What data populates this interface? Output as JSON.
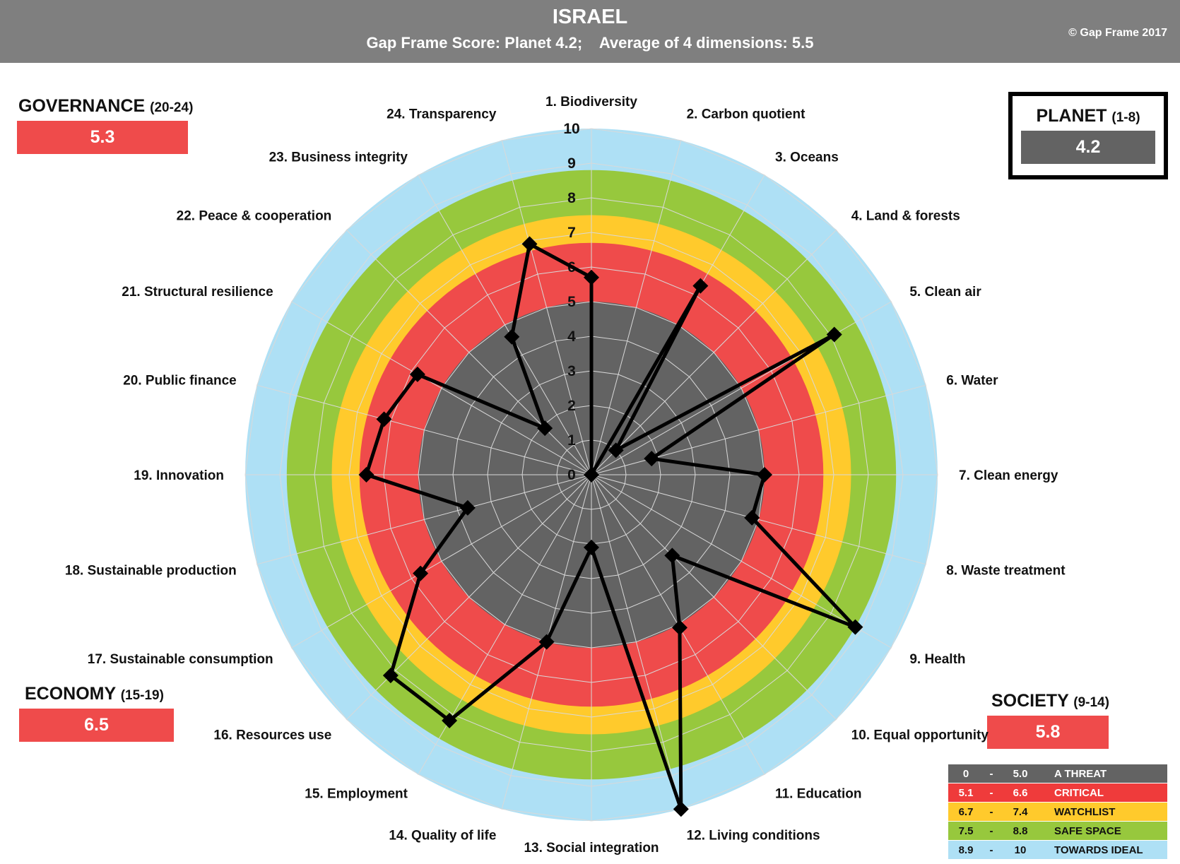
{
  "header": {
    "country": "ISRAEL",
    "score_line": "Gap Frame Score: Planet 4.2;    Average of 4 dimensions: 5.5",
    "copyright": "© Gap Frame 2017"
  },
  "dimensions": {
    "governance": {
      "name": "GOVERNANCE",
      "range": "(20-24)",
      "score": "5.3",
      "color": "#ef4b4b"
    },
    "planet": {
      "name": "PLANET",
      "range": "(1-8)",
      "score": "4.2",
      "color": "#636363"
    },
    "economy": {
      "name": "ECONOMY",
      "range": "(15-19)",
      "score": "6.5",
      "color": "#ef4b4b"
    },
    "society": {
      "name": "SOCIETY",
      "range": "(9-14)",
      "score": "5.8",
      "color": "#ef4b4b"
    }
  },
  "legend": [
    {
      "from": "0",
      "dash": "-",
      "to": "5.0",
      "label": "A THREAT",
      "color": "#636363",
      "text_color": "#ffffff"
    },
    {
      "from": "5.1",
      "dash": "-",
      "to": "6.6",
      "label": "CRITICAL",
      "color": "#ef3b3b",
      "text_color": "#ffffff"
    },
    {
      "from": "6.7",
      "dash": "-",
      "to": "7.4",
      "label": "WATCHLIST",
      "color": "#ffca2c",
      "text_color": "#111111"
    },
    {
      "from": "7.5",
      "dash": "-",
      "to": "8.8",
      "label": "SAFE  SPACE",
      "color": "#97c83d",
      "text_color": "#111111"
    },
    {
      "from": "8.9",
      "dash": "-",
      "to": "10",
      "label": "TOWARDS IDEAL",
      "color": "#aee0f5",
      "text_color": "#111111"
    }
  ],
  "chart_data": {
    "type": "radar",
    "rlim": [
      0,
      10
    ],
    "ticks": [
      "0",
      "1",
      "2",
      "3",
      "4",
      "5",
      "6",
      "7",
      "8",
      "9",
      "10"
    ],
    "bands": [
      {
        "from": 0,
        "to": 5.0,
        "color": "#636363"
      },
      {
        "from": 5.0,
        "to": 6.7,
        "color": "#ef4b4b"
      },
      {
        "from": 6.7,
        "to": 7.5,
        "color": "#ffca2c"
      },
      {
        "from": 7.5,
        "to": 8.8,
        "color": "#97c83d"
      },
      {
        "from": 8.8,
        "to": 10,
        "color": "#aee0f5"
      }
    ],
    "categories": [
      "1. Biodiversity",
      "2. Carbon quotient",
      "3. Oceans",
      "4. Land & forests",
      "5. Clean air",
      "6. Water",
      "7. Clean energy",
      "8. Waste treatment",
      "9. Health",
      "10. Equal opportunity",
      "11. Education",
      "12. Living conditions",
      "13. Social integration",
      "14. Quality of life",
      "15. Employment",
      "16. Resources use",
      "17. Sustainable consumption",
      "18. Sustainable production",
      "19. Innovation",
      "20. Public finance",
      "21. Structural resilience",
      "22. Peace & cooperation",
      "23. Business integrity",
      "24. Transparency"
    ],
    "values": [
      5.7,
      0,
      6.3,
      1.0,
      8.1,
      1.8,
      5.0,
      4.8,
      8.8,
      3.3,
      5.1,
      10.0,
      2.1,
      5.0,
      8.2,
      8.2,
      5.7,
      3.7,
      6.5,
      6.2,
      5.8,
      1.9,
      4.6,
      6.9
    ]
  }
}
